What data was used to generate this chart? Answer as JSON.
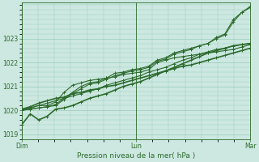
{
  "xlabel": "Pression niveau de la mer( hPa )",
  "x_ticks_labels": [
    "Dim",
    "Lun",
    "Mar"
  ],
  "x_ticks_pos": [
    0.0,
    1.0,
    2.0
  ],
  "ylim": [
    1018.8,
    1024.5
  ],
  "yticks": [
    1019,
    1020,
    1021,
    1022,
    1023
  ],
  "bg_color": "#cce8e0",
  "grid_color": "#99ccbb",
  "line_color": "#2d6a2d",
  "figsize": [
    3.2,
    2.0
  ],
  "dpi": 100,
  "series": [
    {
      "y": [
        1019.4,
        1019.85,
        1019.6,
        1019.75,
        1020.05,
        1020.1,
        1020.2,
        1020.35,
        1020.5,
        1020.6,
        1020.7,
        1020.85,
        1021.0,
        1021.1,
        1021.2,
        1021.35,
        1021.5,
        1021.65,
        1021.8,
        1021.95,
        1022.1,
        1022.25,
        1022.4,
        1022.5,
        1022.6,
        1022.7,
        1022.75,
        1022.8
      ],
      "lw": 1.2
    },
    {
      "y": [
        1020.05,
        1020.15,
        1020.3,
        1020.4,
        1020.5,
        1020.55,
        1020.7,
        1020.75,
        1020.85,
        1020.9,
        1021.0,
        1021.05,
        1021.15,
        1021.25,
        1021.35,
        1021.45,
        1021.55,
        1021.65,
        1021.75,
        1021.85,
        1021.9,
        1022.0,
        1022.1,
        1022.2,
        1022.3,
        1022.4,
        1022.5,
        1022.6
      ],
      "lw": 1.2
    },
    {
      "y": [
        1020.05,
        1020.1,
        1020.2,
        1020.3,
        1020.4,
        1020.5,
        1020.6,
        1020.7,
        1020.8,
        1020.9,
        1021.05,
        1021.15,
        1021.25,
        1021.35,
        1021.45,
        1021.6,
        1021.7,
        1021.8,
        1021.95,
        1022.1,
        1022.2,
        1022.35,
        1022.45,
        1022.55,
        1022.6,
        1022.7,
        1022.75,
        1022.8
      ],
      "lw": 0.8
    },
    {
      "y": [
        1020.0,
        1020.1,
        1020.2,
        1020.2,
        1020.35,
        1020.75,
        1021.05,
        1021.15,
        1021.25,
        1021.3,
        1021.35,
        1021.4,
        1021.5,
        1021.55,
        1021.6,
        1021.7,
        1022.0,
        1022.1,
        1022.2,
        1022.25,
        1022.3,
        1022.35,
        1022.4,
        1022.45,
        1022.5,
        1022.55,
        1022.65,
        1022.75
      ],
      "lw": 0.8
    },
    {
      "y": [
        1020.0,
        1020.05,
        1020.1,
        1020.15,
        1020.25,
        1020.5,
        1020.75,
        1021.0,
        1021.15,
        1021.2,
        1021.35,
        1021.55,
        1021.6,
        1021.7,
        1021.75,
        1021.85,
        1022.1,
        1022.2,
        1022.4,
        1022.5,
        1022.6,
        1022.7,
        1022.8,
        1023.05,
        1023.2,
        1023.8,
        1024.1,
        1024.35
      ],
      "lw": 0.8
    },
    {
      "y": [
        1020.0,
        1020.05,
        1020.1,
        1020.15,
        1020.2,
        1020.45,
        1020.7,
        1020.9,
        1021.1,
        1021.15,
        1021.3,
        1021.45,
        1021.55,
        1021.65,
        1021.7,
        1021.8,
        1022.05,
        1022.15,
        1022.35,
        1022.45,
        1022.55,
        1022.7,
        1022.8,
        1023.0,
        1023.15,
        1023.7,
        1024.1,
        1024.3
      ],
      "lw": 0.8
    }
  ]
}
